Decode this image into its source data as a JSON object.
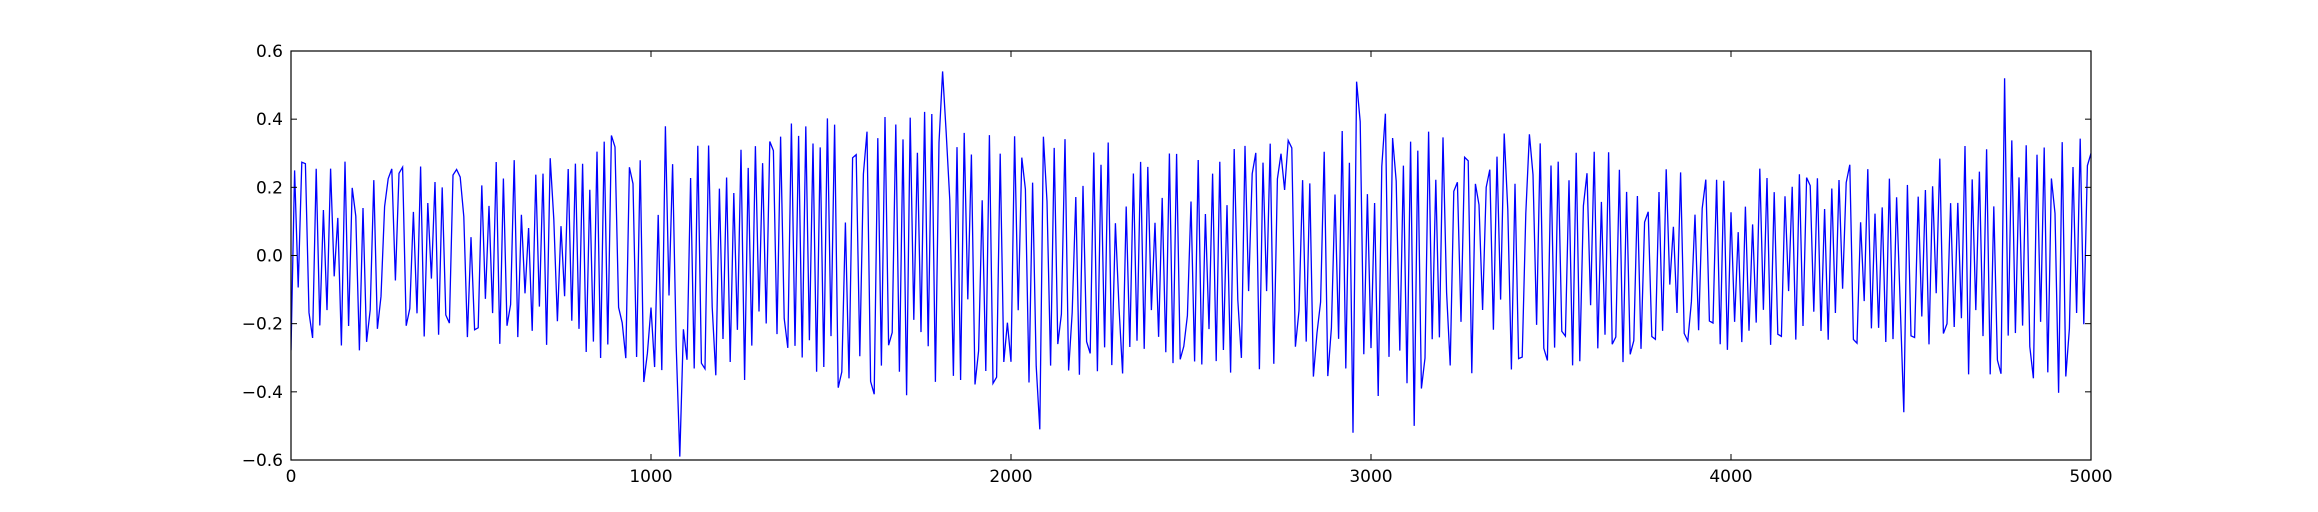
{
  "chart_data": {
    "type": "line",
    "title": "",
    "xlabel": "",
    "ylabel": "",
    "xlim": [
      0,
      5000
    ],
    "ylim": [
      -0.6,
      0.6
    ],
    "xticks": [
      0,
      1000,
      2000,
      3000,
      4000,
      5000
    ],
    "yticks": [
      -0.6,
      -0.4,
      -0.2,
      0.0,
      0.2,
      0.4,
      0.6
    ],
    "xtick_labels": [
      "0",
      "1000",
      "2000",
      "3000",
      "4000",
      "5000"
    ],
    "ytick_labels": [
      "−0.6",
      "−0.4",
      "−0.2",
      "0.0",
      "0.2",
      "0.4",
      "0.6"
    ],
    "grid": false,
    "legend": "none",
    "colors": {
      "line": "#0000ff",
      "axes": "#000000",
      "background": "#ffffff"
    },
    "series": [
      {
        "x_start": 0,
        "x_step": 10,
        "envelope_x": [
          0,
          250,
          500,
          750,
          1000,
          1250,
          1500,
          1750,
          2000,
          2250,
          2500,
          2750,
          3000,
          3250,
          3500,
          3750,
          4000,
          4250,
          4500,
          4750,
          5000
        ],
        "envelope_amplitude": [
          0.28,
          0.27,
          0.26,
          0.29,
          0.38,
          0.37,
          0.41,
          0.43,
          0.4,
          0.35,
          0.33,
          0.36,
          0.44,
          0.37,
          0.35,
          0.3,
          0.27,
          0.26,
          0.28,
          0.38,
          0.4
        ],
        "peaks": [
          {
            "x": 1080,
            "y": -0.59
          },
          {
            "x": 1810,
            "y": 0.54
          },
          {
            "x": 2080,
            "y": -0.51
          },
          {
            "x": 2960,
            "y": 0.51
          },
          {
            "x": 2950,
            "y": -0.52
          },
          {
            "x": 4760,
            "y": 0.52
          },
          {
            "x": 4480,
            "y": -0.46
          },
          {
            "x": 3120,
            "y": -0.5
          }
        ]
      }
    ]
  }
}
